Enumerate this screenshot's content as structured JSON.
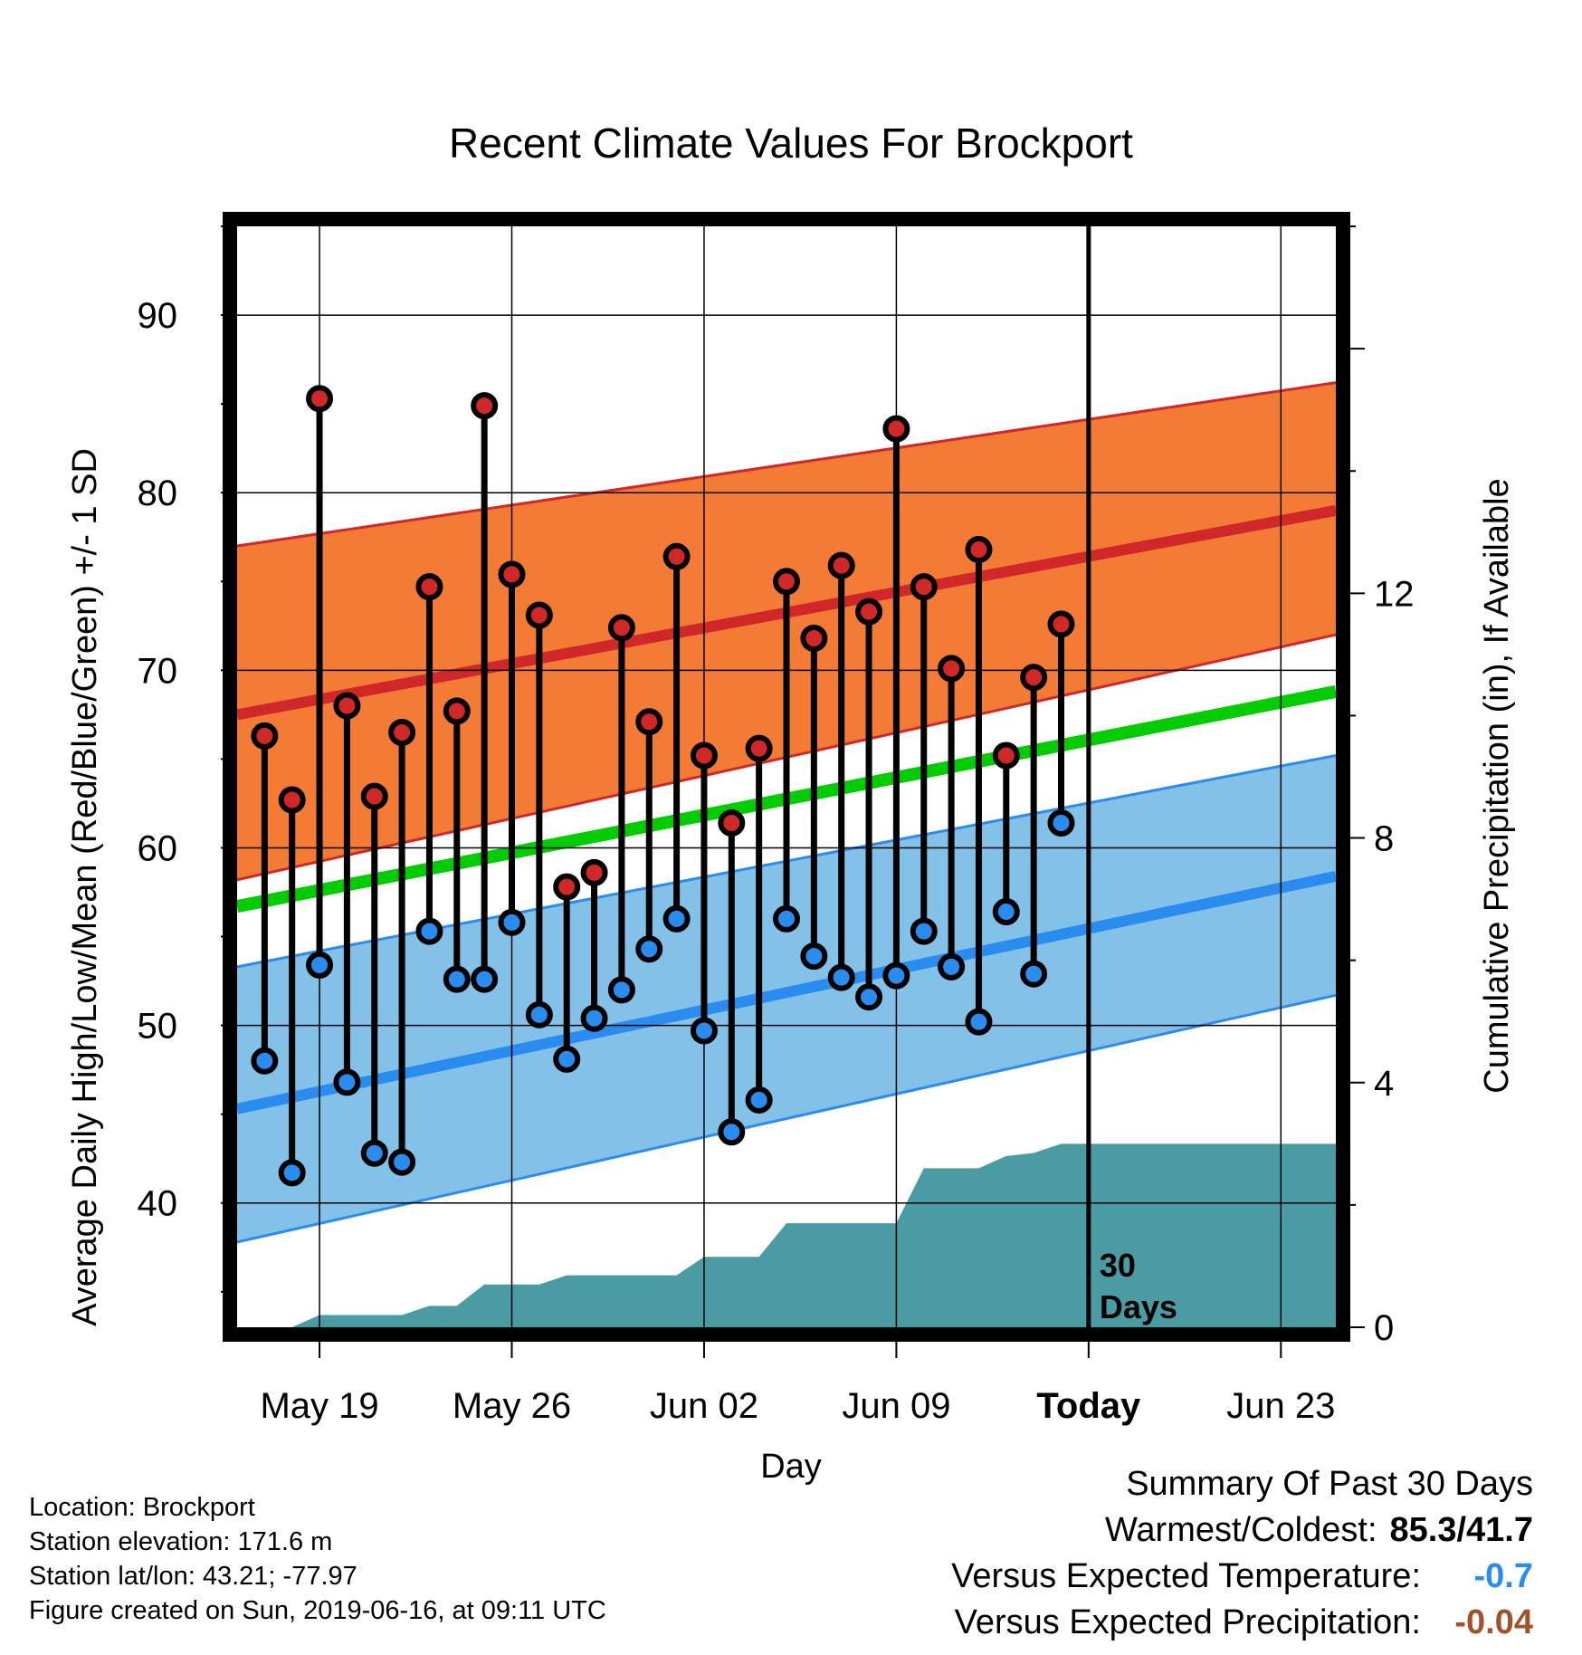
{
  "chart_data": {
    "type": "line",
    "title": "Recent Climate Values For Brockport",
    "xlabel": "Day",
    "ylabel": "Average Daily High/Low/Mean (Red/Blue/Green) +/- 1 SD",
    "y2label": "Cumulative Precipitation (in), If Available",
    "ylim": [
      33,
      95
    ],
    "y2lim": [
      0,
      18
    ],
    "y_ticks": [
      "40",
      "50",
      "60",
      "70",
      "80",
      "90"
    ],
    "y2_ticks": [
      "0",
      "4",
      "8",
      "12"
    ],
    "x_ticks": [
      {
        "day": "2019-05-19",
        "label": "May 19"
      },
      {
        "day": "2019-05-26",
        "label": "May 26"
      },
      {
        "day": "2019-06-02",
        "label": "Jun 02"
      },
      {
        "day": "2019-06-09",
        "label": "Jun 09"
      },
      {
        "day": "2019-06-16",
        "label": "Today"
      },
      {
        "day": "2019-06-23",
        "label": "Jun 23"
      }
    ],
    "x_range": [
      "2019-05-16",
      "2019-06-25"
    ],
    "today": "2019-06-16",
    "today_label": [
      "30",
      "Days"
    ],
    "grid": true,
    "colors": {
      "high_band": "#f47b35",
      "high_line": "#d02828",
      "low_band": "#84c1e8",
      "low_line": "#2b8cf0",
      "mean_line": "#00cc00",
      "precip": "#4a9ba3",
      "high_marker": "#d02828",
      "low_marker": "#2b8cf0"
    },
    "normals": {
      "x": [
        "2019-05-16",
        "2019-06-25"
      ],
      "high_mean": [
        67.5,
        79.0
      ],
      "high_upper": [
        77.0,
        86.2
      ],
      "high_lower": [
        58.2,
        72.0
      ],
      "low_mean": [
        45.3,
        58.4
      ],
      "low_upper": [
        53.3,
        65.2
      ],
      "low_lower": [
        37.8,
        51.7
      ],
      "mean": [
        56.7,
        68.8
      ]
    },
    "observed": [
      {
        "date": "2019-05-17",
        "high": 66.3,
        "low": 48.0
      },
      {
        "date": "2019-05-18",
        "high": 62.7,
        "low": 41.7
      },
      {
        "date": "2019-05-19",
        "high": 85.3,
        "low": 53.4
      },
      {
        "date": "2019-05-20",
        "high": 68.0,
        "low": 46.8
      },
      {
        "date": "2019-05-21",
        "high": 62.9,
        "low": 42.8
      },
      {
        "date": "2019-05-22",
        "high": 66.5,
        "low": 42.3
      },
      {
        "date": "2019-05-23",
        "high": 74.7,
        "low": 55.3
      },
      {
        "date": "2019-05-24",
        "high": 67.7,
        "low": 52.6
      },
      {
        "date": "2019-05-25",
        "high": 84.9,
        "low": 52.6
      },
      {
        "date": "2019-05-26",
        "high": 75.4,
        "low": 55.8
      },
      {
        "date": "2019-05-27",
        "high": 73.1,
        "low": 50.6
      },
      {
        "date": "2019-05-28",
        "high": 57.8,
        "low": 48.1
      },
      {
        "date": "2019-05-29",
        "high": 58.6,
        "low": 50.4
      },
      {
        "date": "2019-05-30",
        "high": 72.4,
        "low": 52.0
      },
      {
        "date": "2019-05-31",
        "high": 67.1,
        "low": 54.3
      },
      {
        "date": "2019-06-01",
        "high": 76.4,
        "low": 56.0
      },
      {
        "date": "2019-06-02",
        "high": 65.2,
        "low": 49.7
      },
      {
        "date": "2019-06-03",
        "high": 61.4,
        "low": 44.0
      },
      {
        "date": "2019-06-04",
        "high": 65.6,
        "low": 45.8
      },
      {
        "date": "2019-06-05",
        "high": 75.0,
        "low": 56.0
      },
      {
        "date": "2019-06-06",
        "high": 71.8,
        "low": 53.9
      },
      {
        "date": "2019-06-07",
        "high": 75.9,
        "low": 52.7
      },
      {
        "date": "2019-06-08",
        "high": 73.3,
        "low": 51.6
      },
      {
        "date": "2019-06-09",
        "high": 83.6,
        "low": 52.8
      },
      {
        "date": "2019-06-10",
        "high": 74.7,
        "low": 55.3
      },
      {
        "date": "2019-06-11",
        "high": 70.1,
        "low": 53.3
      },
      {
        "date": "2019-06-12",
        "high": 76.8,
        "low": 50.2
      },
      {
        "date": "2019-06-13",
        "high": 65.2,
        "low": 56.4
      },
      {
        "date": "2019-06-14",
        "high": 69.6,
        "low": 52.9
      },
      {
        "date": "2019-06-15",
        "high": 72.6,
        "low": 61.4
      }
    ],
    "precip_cumulative": [
      {
        "date": "2019-05-16",
        "value": 0.0
      },
      {
        "date": "2019-05-18",
        "value": 0.0
      },
      {
        "date": "2019-05-19",
        "value": 0.2
      },
      {
        "date": "2019-05-22",
        "value": 0.2
      },
      {
        "date": "2019-05-23",
        "value": 0.35
      },
      {
        "date": "2019-05-24",
        "value": 0.35
      },
      {
        "date": "2019-05-25",
        "value": 0.7
      },
      {
        "date": "2019-05-27",
        "value": 0.7
      },
      {
        "date": "2019-05-28",
        "value": 0.85
      },
      {
        "date": "2019-06-01",
        "value": 0.85
      },
      {
        "date": "2019-06-02",
        "value": 1.15
      },
      {
        "date": "2019-06-04",
        "value": 1.15
      },
      {
        "date": "2019-06-05",
        "value": 1.7
      },
      {
        "date": "2019-06-09",
        "value": 1.7
      },
      {
        "date": "2019-06-10",
        "value": 2.6
      },
      {
        "date": "2019-06-12",
        "value": 2.6
      },
      {
        "date": "2019-06-13",
        "value": 2.8
      },
      {
        "date": "2019-06-14",
        "value": 2.85
      },
      {
        "date": "2019-06-15",
        "value": 3.0
      },
      {
        "date": "2019-06-25",
        "value": 3.0
      }
    ]
  },
  "info": {
    "location": "Location: Brockport",
    "elevation": "Station elevation: 171.6 m",
    "latlon": "Station lat/lon: 43.21; -77.97",
    "created": "Figure created on Sun, 2019-06-16, at 09:11 UTC"
  },
  "summary": {
    "title": "Summary Of Past 30 Days",
    "warmest_label": "Warmest/Coldest:",
    "warmest_value": "85.3/41.7",
    "temp_label": "Versus Expected Temperature:",
    "temp_value": "-0.7",
    "temp_color": "#2b8cf0",
    "precip_label": "Versus Expected Precipitation:",
    "precip_value": "-0.04",
    "precip_color": "#a0522d"
  }
}
